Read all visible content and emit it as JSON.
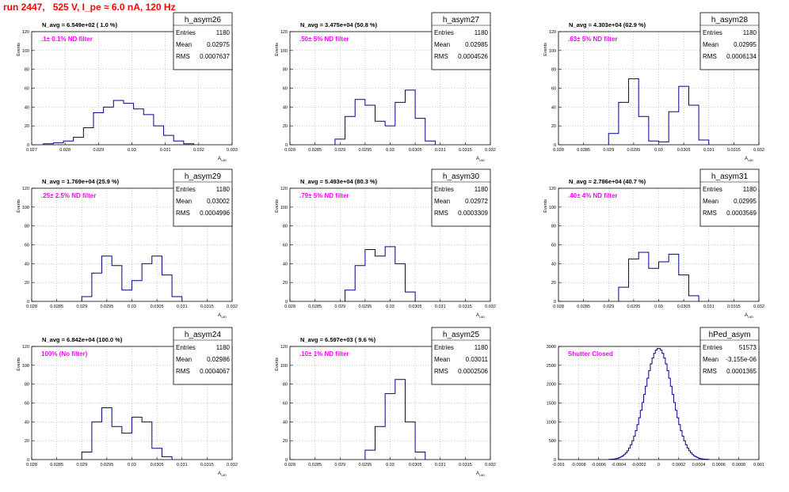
{
  "page_title": "run 2447,   525 V, I_pe ≈ 6.0 nA, 120 Hz",
  "stats_labels": {
    "entries": "Entries",
    "mean": "Mean",
    "rms": "RMS"
  },
  "colors": {
    "histogram": "#00008b",
    "annotation": "#ff00ff",
    "title": "#ff0000",
    "frame": "#000000",
    "grid": "#999999"
  },
  "chart_data": [
    {
      "type": "histogram",
      "name": "h_asym26",
      "nav_text": "N_avg = 6.549e+02 ( 1.0 %)",
      "filter_text": ".1± 0.1% ND filter",
      "stats": {
        "entries": "1180",
        "mean": "0.02975",
        "rms": "0.0007637"
      },
      "ylabel": "Events",
      "xlabel": "A",
      "xlim": [
        0.027,
        0.033
      ],
      "ylim": [
        0,
        120
      ],
      "grid": true,
      "xticks": [
        "0.027",
        "0.028",
        "0.029",
        "0.03",
        "0.031",
        "0.032",
        "0.033"
      ],
      "yticks": [
        "0",
        "20",
        "40",
        "60",
        "80",
        "100",
        "120"
      ],
      "bins_x": [
        0.0275,
        0.0278,
        0.0281,
        0.0284,
        0.0287,
        0.029,
        0.0293,
        0.0296,
        0.0299,
        0.0302,
        0.0305,
        0.0308,
        0.0311,
        0.0314,
        0.0317
      ],
      "bins_y": [
        1,
        2,
        4,
        8,
        18,
        34,
        40,
        47,
        44,
        38,
        32,
        20,
        10,
        4,
        1
      ]
    },
    {
      "type": "histogram",
      "name": "h_asym27",
      "nav_text": "N_avg = 3.475e+04 (50.8 %)",
      "filter_text": ".50± 5% ND filter",
      "stats": {
        "entries": "1180",
        "mean": "0.02985",
        "rms": "0.0004526"
      },
      "ylabel": "Events",
      "xlabel": "A",
      "xlim": [
        0.028,
        0.032
      ],
      "ylim": [
        0,
        120
      ],
      "grid": true,
      "xticks": [
        "0.028",
        "0.0285",
        "0.029",
        "0.0295",
        "0.03",
        "0.0305",
        "0.031",
        "0.0315",
        "0.032"
      ],
      "yticks": [
        "0",
        "20",
        "40",
        "60",
        "80",
        "100",
        "120"
      ],
      "bins_x": [
        0.029,
        0.0292,
        0.0294,
        0.0296,
        0.0298,
        0.03,
        0.0302,
        0.0304,
        0.0306,
        0.0308
      ],
      "bins_y": [
        6,
        30,
        48,
        42,
        25,
        20,
        45,
        58,
        28,
        4
      ]
    },
    {
      "type": "histogram",
      "name": "h_asym28",
      "nav_text": "N_avg = 4.303e+04 (62.9 %)",
      "filter_text": ".63± 5% ND filter",
      "stats": {
        "entries": "1180",
        "mean": "0.02995",
        "rms": "0.0006134"
      },
      "ylabel": "Events",
      "xlabel": "A",
      "xlim": [
        0.028,
        0.032
      ],
      "ylim": [
        0,
        120
      ],
      "grid": true,
      "xticks": [
        "0.028",
        "0.0285",
        "0.029",
        "0.0295",
        "0.03",
        "0.0305",
        "0.031",
        "0.0315",
        "0.032"
      ],
      "yticks": [
        "0",
        "20",
        "40",
        "60",
        "80",
        "100",
        "120"
      ],
      "bins_x": [
        0.0291,
        0.0293,
        0.0295,
        0.0297,
        0.0299,
        0.0301,
        0.0303,
        0.0305,
        0.0307,
        0.0309
      ],
      "bins_y": [
        12,
        45,
        70,
        30,
        4,
        3,
        35,
        62,
        42,
        5
      ]
    },
    {
      "type": "histogram",
      "name": "h_asym29",
      "nav_text": "N_avg = 1.769e+04 (25.9 %)",
      "filter_text": ".25± 2.5% ND filter",
      "stats": {
        "entries": "1180",
        "mean": "0.03002",
        "rms": "0.0004996"
      },
      "ylabel": "Events",
      "xlabel": "A",
      "xlim": [
        0.028,
        0.032
      ],
      "ylim": [
        0,
        120
      ],
      "grid": true,
      "xticks": [
        "0.028",
        "0.0285",
        "0.029",
        "0.0295",
        "0.03",
        "0.0305",
        "0.031",
        "0.0315",
        "0.032"
      ],
      "yticks": [
        "0",
        "20",
        "40",
        "60",
        "80",
        "100",
        "120"
      ],
      "bins_x": [
        0.0291,
        0.0293,
        0.0295,
        0.0297,
        0.0299,
        0.0301,
        0.0303,
        0.0305,
        0.0307,
        0.0309
      ],
      "bins_y": [
        5,
        30,
        48,
        38,
        12,
        22,
        40,
        48,
        28,
        5
      ]
    },
    {
      "type": "histogram",
      "name": "h_asym30",
      "nav_text": "N_avg = 5.493e+04 (80.3 %)",
      "filter_text": ".79± 5% ND filter",
      "stats": {
        "entries": "1180",
        "mean": "0.02972",
        "rms": "0.0003309"
      },
      "ylabel": "Events",
      "xlabel": "A",
      "xlim": [
        0.028,
        0.032
      ],
      "ylim": [
        0,
        120
      ],
      "grid": true,
      "xticks": [
        "0.028",
        "0.0285",
        "0.029",
        "0.0295",
        "0.03",
        "0.0305",
        "0.031",
        "0.0315",
        "0.032"
      ],
      "yticks": [
        "0",
        "20",
        "40",
        "60",
        "80",
        "100",
        "120"
      ],
      "bins_x": [
        0.0292,
        0.0294,
        0.0296,
        0.0298,
        0.03,
        0.0302,
        0.0304
      ],
      "bins_y": [
        12,
        38,
        55,
        48,
        58,
        40,
        10
      ]
    },
    {
      "type": "histogram",
      "name": "h_asym31",
      "nav_text": "N_avg = 2.786e+04 (40.7 %)",
      "filter_text": ".40± 4% ND filter",
      "stats": {
        "entries": "1180",
        "mean": "0.02995",
        "rms": "0.0003569"
      },
      "ylabel": "Events",
      "xlabel": "A",
      "xlim": [
        0.028,
        0.032
      ],
      "ylim": [
        0,
        120
      ],
      "grid": true,
      "xticks": [
        "0.028",
        "0.0285",
        "0.029",
        "0.0295",
        "0.03",
        "0.0305",
        "0.031",
        "0.0315",
        "0.032"
      ],
      "yticks": [
        "0",
        "20",
        "40",
        "60",
        "80",
        "100",
        "120"
      ],
      "bins_x": [
        0.0293,
        0.0295,
        0.0297,
        0.0299,
        0.0301,
        0.0303,
        0.0305,
        0.0307
      ],
      "bins_y": [
        15,
        45,
        52,
        35,
        42,
        50,
        28,
        6
      ]
    },
    {
      "type": "histogram",
      "name": "h_asym24",
      "nav_text": "N_avg = 6.842e+04 (100.0 %)",
      "filter_text": "100% (No filter)",
      "stats": {
        "entries": "1180",
        "mean": "0.02986",
        "rms": "0.0004067"
      },
      "ylabel": "Events",
      "xlabel": "A",
      "xlim": [
        0.028,
        0.032
      ],
      "ylim": [
        0,
        120
      ],
      "grid": true,
      "xticks": [
        "0.028",
        "0.0285",
        "0.029",
        "0.0295",
        "0.03",
        "0.0305",
        "0.031",
        "0.0315",
        "0.032"
      ],
      "yticks": [
        "0",
        "20",
        "40",
        "60",
        "80",
        "100",
        "120"
      ],
      "bins_x": [
        0.0291,
        0.0293,
        0.0295,
        0.0297,
        0.0299,
        0.0301,
        0.0303,
        0.0305,
        0.0307
      ],
      "bins_y": [
        8,
        40,
        55,
        35,
        28,
        45,
        40,
        12,
        3
      ]
    },
    {
      "type": "histogram",
      "name": "h_asym25",
      "nav_text": "N_avg = 6.597e+03 ( 9.6 %)",
      "filter_text": ".10± 1% ND filter",
      "stats": {
        "entries": "1180",
        "mean": "0.03011",
        "rms": "0.0002506"
      },
      "ylabel": "Events",
      "xlabel": "A",
      "xlim": [
        0.028,
        0.032
      ],
      "ylim": [
        0,
        120
      ],
      "grid": true,
      "xticks": [
        "0.028",
        "0.0285",
        "0.029",
        "0.0295",
        "0.03",
        "0.0305",
        "0.031",
        "0.0315",
        "0.032"
      ],
      "yticks": [
        "0",
        "20",
        "40",
        "60",
        "80",
        "100",
        "120"
      ],
      "bins_x": [
        0.0296,
        0.0298,
        0.03,
        0.0302,
        0.0304,
        0.0306
      ],
      "bins_y": [
        10,
        35,
        70,
        85,
        40,
        8
      ]
    },
    {
      "type": "histogram",
      "name": "hPed_asym",
      "nav_text": "",
      "filter_text": "Shutter Closed",
      "stats": {
        "entries": "51573",
        "mean": "-3.155e-06",
        "rms": "0.0001365"
      },
      "ylabel": "",
      "xlabel": "",
      "xlim": [
        -0.001,
        0.001
      ],
      "ylim": [
        0,
        3000
      ],
      "grid": true,
      "xticks": [
        "-0.001",
        "-0.0008",
        "-0.0006",
        "-0.0004",
        "-0.0002",
        "0",
        "0.0002",
        "0.0004",
        "0.0006",
        "0.0008",
        "0.001"
      ],
      "yticks": [
        "0",
        "500",
        "1000",
        "1500",
        "2000",
        "2500",
        "3000"
      ],
      "gaussian": {
        "mean": 0,
        "sigma": 0.000137,
        "peak": 2950,
        "from": -0.0005,
        "to": 0.0005,
        "nbins": 60
      }
    }
  ]
}
